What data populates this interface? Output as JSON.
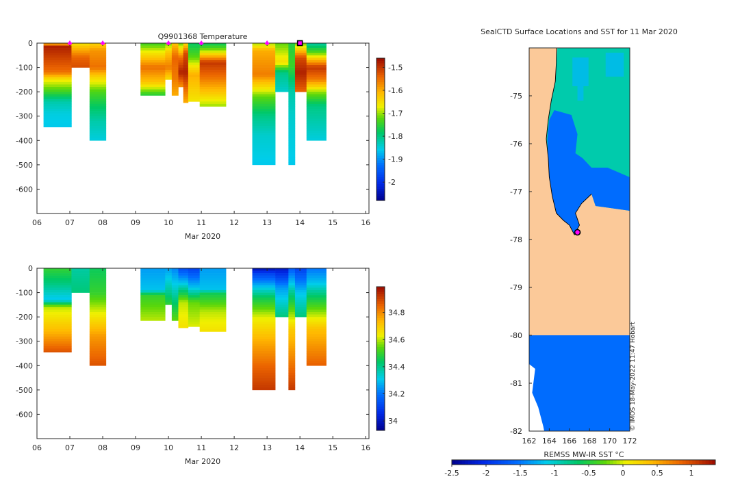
{
  "chart_data": [
    {
      "id": "temperature-profile",
      "type": "heatmap",
      "title": "Q9901368  Temperature",
      "xlabel": "Mar 2020",
      "ylabel": "",
      "xlim": [
        6,
        16.1
      ],
      "ylim": [
        -700,
        0
      ],
      "xticks": [
        {
          "v": 6,
          "label": "06"
        },
        {
          "v": 7,
          "label": "07"
        },
        {
          "v": 8,
          "label": "08"
        },
        {
          "v": 9,
          "label": "09"
        },
        {
          "v": 10,
          "label": "10"
        },
        {
          "v": 11,
          "label": "11"
        },
        {
          "v": 12,
          "label": "12"
        },
        {
          "v": 13,
          "label": "13"
        },
        {
          "v": 14,
          "label": "14"
        },
        {
          "v": 15,
          "label": "15"
        },
        {
          "v": 16,
          "label": "16"
        }
      ],
      "yticks": [
        {
          "v": 0,
          "label": "0"
        },
        {
          "v": -100,
          "label": "-100"
        },
        {
          "v": -200,
          "label": "-200"
        },
        {
          "v": -300,
          "label": "-300"
        },
        {
          "v": -400,
          "label": "-400"
        },
        {
          "v": -500,
          "label": "-500"
        },
        {
          "v": -600,
          "label": "-600"
        }
      ],
      "colorbar": {
        "min": -2.08,
        "max": -1.46,
        "ticks": [
          {
            "v": -1.5,
            "label": "-1.5"
          },
          {
            "v": -1.6,
            "label": "-1.6"
          },
          {
            "v": -1.7,
            "label": "-1.7"
          },
          {
            "v": -1.8,
            "label": "-1.8"
          },
          {
            "v": -1.9,
            "label": "-1.9"
          },
          {
            "v": -2,
            "label": "-2"
          }
        ]
      },
      "markers": {
        "color": "#ff00ff",
        "x": [
          7.0,
          8.0,
          10.0,
          11.0,
          13.0
        ],
        "current_x": 14.0
      },
      "profiles": [
        {
          "x0": 6.2,
          "x1": 7.05,
          "depth": 345,
          "values": [
            [
              0,
              -1.62
            ],
            [
              15,
              -1.48
            ],
            [
              120,
              -1.55
            ],
            [
              150,
              -1.66
            ],
            [
              200,
              -1.74
            ],
            [
              240,
              -1.82
            ],
            [
              290,
              -1.85
            ],
            [
              345,
              -1.86
            ]
          ]
        },
        {
          "x0": 7.05,
          "x1": 7.6,
          "depth": 100,
          "values": [
            [
              0,
              -1.66
            ],
            [
              15,
              -1.62
            ],
            [
              60,
              -1.54
            ],
            [
              100,
              -1.52
            ]
          ]
        },
        {
          "x0": 7.6,
          "x1": 8.1,
          "depth": 400,
          "values": [
            [
              0,
              -1.64
            ],
            [
              30,
              -1.58
            ],
            [
              100,
              -1.55
            ],
            [
              140,
              -1.64
            ],
            [
              200,
              -1.73
            ],
            [
              260,
              -1.78
            ],
            [
              320,
              -1.82
            ],
            [
              400,
              -1.85
            ]
          ]
        },
        {
          "x0": 9.15,
          "x1": 9.9,
          "depth": 215,
          "values": [
            [
              0,
              -1.74
            ],
            [
              40,
              -1.66
            ],
            [
              100,
              -1.55
            ],
            [
              160,
              -1.62
            ],
            [
              215,
              -1.76
            ]
          ]
        },
        {
          "x0": 9.9,
          "x1": 10.1,
          "depth": 150,
          "values": [
            [
              0,
              -1.72
            ],
            [
              40,
              -1.62
            ],
            [
              100,
              -1.56
            ],
            [
              150,
              -1.65
            ]
          ]
        },
        {
          "x0": 10.1,
          "x1": 10.3,
          "depth": 215,
          "values": [
            [
              0,
              -1.62
            ],
            [
              60,
              -1.54
            ],
            [
              150,
              -1.56
            ],
            [
              215,
              -1.6
            ]
          ]
        },
        {
          "x0": 10.3,
          "x1": 10.45,
          "depth": 180,
          "values": [
            [
              0,
              -1.72
            ],
            [
              60,
              -1.55
            ],
            [
              120,
              -1.48
            ],
            [
              180,
              -1.58
            ]
          ]
        },
        {
          "x0": 10.45,
          "x1": 10.6,
          "depth": 245,
          "values": [
            [
              0,
              -1.65
            ],
            [
              40,
              -1.52
            ],
            [
              120,
              -1.48
            ],
            [
              245,
              -1.6
            ]
          ]
        },
        {
          "x0": 10.6,
          "x1": 10.95,
          "depth": 240,
          "values": [
            [
              0,
              -1.78
            ],
            [
              60,
              -1.72
            ],
            [
              130,
              -1.6
            ],
            [
              240,
              -1.66
            ]
          ]
        },
        {
          "x0": 10.95,
          "x1": 11.75,
          "depth": 260,
          "values": [
            [
              0,
              -1.78
            ],
            [
              30,
              -1.7
            ],
            [
              80,
              -1.5
            ],
            [
              140,
              -1.55
            ],
            [
              200,
              -1.62
            ],
            [
              260,
              -1.7
            ]
          ]
        },
        {
          "x0": 12.55,
          "x1": 13.25,
          "depth": 500,
          "values": [
            [
              0,
              -1.7
            ],
            [
              30,
              -1.6
            ],
            [
              130,
              -1.56
            ],
            [
              220,
              -1.72
            ],
            [
              300,
              -1.8
            ],
            [
              380,
              -1.84
            ],
            [
              500,
              -1.86
            ]
          ]
        },
        {
          "x0": 13.25,
          "x1": 13.65,
          "depth": 200,
          "values": [
            [
              0,
              -1.72
            ],
            [
              80,
              -1.65
            ],
            [
              120,
              -1.8
            ],
            [
              200,
              -1.84
            ]
          ]
        },
        {
          "x0": 13.65,
          "x1": 13.85,
          "depth": 500,
          "values": [
            [
              0,
              -1.76
            ],
            [
              90,
              -1.74
            ],
            [
              200,
              -1.82
            ],
            [
              300,
              -1.84
            ],
            [
              500,
              -1.86
            ]
          ]
        },
        {
          "x0": 13.85,
          "x1": 14.2,
          "depth": 200,
          "values": [
            [
              0,
              -1.72
            ],
            [
              60,
              -1.52
            ],
            [
              120,
              -1.48
            ],
            [
              200,
              -1.54
            ]
          ]
        },
        {
          "x0": 14.2,
          "x1": 14.8,
          "depth": 400,
          "values": [
            [
              0,
              -1.82
            ],
            [
              40,
              -1.72
            ],
            [
              100,
              -1.5
            ],
            [
              150,
              -1.56
            ],
            [
              200,
              -1.7
            ],
            [
              260,
              -1.8
            ],
            [
              400,
              -1.85
            ]
          ]
        }
      ]
    },
    {
      "id": "salinity-profile",
      "type": "heatmap",
      "title": "",
      "xlabel": "Mar 2020",
      "ylabel": "",
      "xlim": [
        6,
        16.1
      ],
      "ylim": [
        -700,
        0
      ],
      "xticks": [
        {
          "v": 6,
          "label": "06"
        },
        {
          "v": 7,
          "label": "07"
        },
        {
          "v": 8,
          "label": "08"
        },
        {
          "v": 9,
          "label": "09"
        },
        {
          "v": 10,
          "label": "10"
        },
        {
          "v": 11,
          "label": "11"
        },
        {
          "v": 12,
          "label": "12"
        },
        {
          "v": 13,
          "label": "13"
        },
        {
          "v": 14,
          "label": "14"
        },
        {
          "v": 15,
          "label": "15"
        },
        {
          "v": 16,
          "label": "16"
        }
      ],
      "yticks": [
        {
          "v": 0,
          "label": "0"
        },
        {
          "v": -100,
          "label": "-100"
        },
        {
          "v": -200,
          "label": "-200"
        },
        {
          "v": -300,
          "label": "-300"
        },
        {
          "v": -400,
          "label": "-400"
        },
        {
          "v": -500,
          "label": "-500"
        },
        {
          "v": -600,
          "label": "-600"
        }
      ],
      "colorbar": {
        "min": 33.93,
        "max": 34.99,
        "ticks": [
          {
            "v": 34.8,
            "label": "34.8"
          },
          {
            "v": 34.6,
            "label": "34.6"
          },
          {
            "v": 34.4,
            "label": "34.4"
          },
          {
            "v": 34.2,
            "label": "34.2"
          },
          {
            "v": 34,
            "label": "34"
          }
        ]
      },
      "profiles": [
        {
          "x0": 6.2,
          "x1": 7.05,
          "depth": 345,
          "values": [
            [
              0,
              34.5
            ],
            [
              60,
              34.42
            ],
            [
              130,
              34.3
            ],
            [
              160,
              34.6
            ],
            [
              250,
              34.72
            ],
            [
              345,
              34.88
            ]
          ]
        },
        {
          "x0": 7.05,
          "x1": 7.6,
          "depth": 100,
          "values": [
            [
              0,
              34.38
            ],
            [
              100,
              34.42
            ]
          ]
        },
        {
          "x0": 7.6,
          "x1": 8.1,
          "depth": 400,
          "values": [
            [
              0,
              34.45
            ],
            [
              100,
              34.5
            ],
            [
              180,
              34.62
            ],
            [
              280,
              34.78
            ],
            [
              400,
              34.88
            ]
          ]
        },
        {
          "x0": 9.15,
          "x1": 9.9,
          "depth": 215,
          "values": [
            [
              0,
              34.25
            ],
            [
              90,
              34.3
            ],
            [
              110,
              34.5
            ],
            [
              215,
              34.6
            ]
          ]
        },
        {
          "x0": 9.9,
          "x1": 10.1,
          "depth": 150,
          "values": [
            [
              0,
              34.25
            ],
            [
              100,
              34.4
            ],
            [
              150,
              34.5
            ]
          ]
        },
        {
          "x0": 10.1,
          "x1": 10.3,
          "depth": 215,
          "values": [
            [
              0,
              34.22
            ],
            [
              90,
              34.35
            ],
            [
              215,
              34.55
            ]
          ]
        },
        {
          "x0": 10.3,
          "x1": 10.6,
          "depth": 245,
          "values": [
            [
              0,
              34.12
            ],
            [
              60,
              34.3
            ],
            [
              140,
              34.6
            ],
            [
              245,
              34.66
            ]
          ]
        },
        {
          "x0": 10.6,
          "x1": 10.95,
          "depth": 240,
          "values": [
            [
              0,
              34.1
            ],
            [
              80,
              34.3
            ],
            [
              140,
              34.55
            ],
            [
              240,
              34.62
            ]
          ]
        },
        {
          "x0": 10.95,
          "x1": 11.75,
          "depth": 260,
          "values": [
            [
              0,
              34.25
            ],
            [
              90,
              34.3
            ],
            [
              100,
              34.45
            ],
            [
              180,
              34.6
            ],
            [
              260,
              34.66
            ]
          ]
        },
        {
          "x0": 12.55,
          "x1": 13.25,
          "depth": 500,
          "values": [
            [
              0,
              33.97
            ],
            [
              20,
              34.1
            ],
            [
              120,
              34.45
            ],
            [
              200,
              34.62
            ],
            [
              300,
              34.75
            ],
            [
              400,
              34.85
            ],
            [
              500,
              34.92
            ]
          ]
        },
        {
          "x0": 13.25,
          "x1": 13.65,
          "depth": 200,
          "values": [
            [
              0,
              34.0
            ],
            [
              80,
              34.25
            ],
            [
              200,
              34.42
            ]
          ]
        },
        {
          "x0": 13.65,
          "x1": 13.85,
          "depth": 500,
          "values": [
            [
              0,
              34.15
            ],
            [
              100,
              34.4
            ],
            [
              250,
              34.7
            ],
            [
              500,
              34.92
            ]
          ]
        },
        {
          "x0": 13.85,
          "x1": 14.2,
          "depth": 200,
          "values": [
            [
              0,
              34.1
            ],
            [
              100,
              34.3
            ],
            [
              200,
              34.42
            ]
          ]
        },
        {
          "x0": 14.2,
          "x1": 14.8,
          "depth": 400,
          "values": [
            [
              0,
              34.2
            ],
            [
              60,
              34.3
            ],
            [
              120,
              34.45
            ],
            [
              250,
              34.72
            ],
            [
              400,
              34.86
            ]
          ]
        }
      ]
    },
    {
      "id": "sst-map",
      "type": "heatmap",
      "title": "SealCTD Surface Locations and SST for 11 Mar 2020",
      "xlabel": "",
      "ylabel": "",
      "xlim": [
        162,
        172
      ],
      "ylim": [
        -82,
        -74
      ],
      "xticks": [
        {
          "v": 162,
          "label": "162"
        },
        {
          "v": 164,
          "label": "164"
        },
        {
          "v": 166,
          "label": "166"
        },
        {
          "v": 168,
          "label": "168"
        },
        {
          "v": 170,
          "label": "170"
        },
        {
          "v": 172,
          "label": "172"
        }
      ],
      "yticks": [
        {
          "v": -75,
          "label": "-75"
        },
        {
          "v": -76,
          "label": "-76"
        },
        {
          "v": -77,
          "label": "-77"
        },
        {
          "v": -78,
          "label": "-78"
        },
        {
          "v": -79,
          "label": "-79"
        },
        {
          "v": -80,
          "label": "-80"
        },
        {
          "v": -81,
          "label": "-81"
        },
        {
          "v": -82,
          "label": "-82"
        }
      ],
      "colorbar": {
        "label": "REMSS MW-IR SST °C",
        "min": -2.5,
        "max": 1.35,
        "ticks": [
          {
            "v": -2.5,
            "label": "-2.5"
          },
          {
            "v": -2,
            "label": "-2"
          },
          {
            "v": -1.5,
            "label": "-1.5"
          },
          {
            "v": -1,
            "label": "-1"
          },
          {
            "v": -0.5,
            "label": "-0.5"
          },
          {
            "v": 0,
            "label": "0"
          },
          {
            "v": 0.5,
            "label": "0.5"
          },
          {
            "v": 1,
            "label": "1"
          }
        ]
      },
      "land_color": "#fbc999",
      "ice_sst": -1.55,
      "open_water_sst": -0.9,
      "position_marker": {
        "lon": 166.8,
        "lat": -77.85,
        "color": "#ff00ff"
      },
      "credit": "© IMOS 18-May-2022 11:47 Hobart"
    }
  ]
}
